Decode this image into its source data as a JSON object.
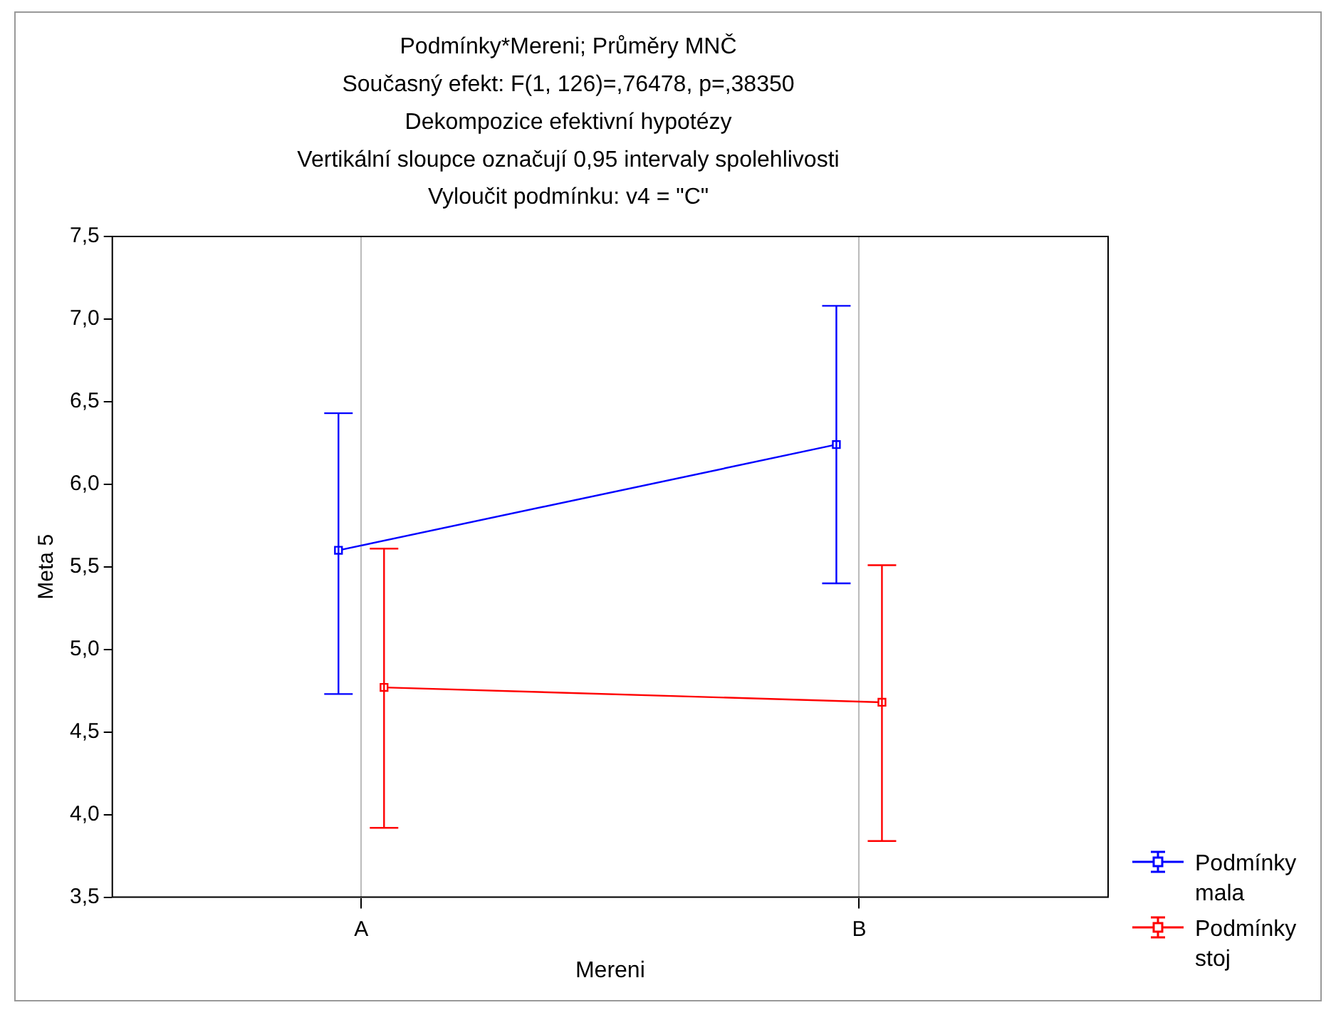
{
  "chart_data": {
    "type": "line",
    "title": "Podmínky*Mereni; Průměry MNČ",
    "subtitle": "Současný efekt: F(1, 126)=,76478, p=,38350",
    "annotations": [
      "Dekompozice efektivní hypotézy",
      "Vertikální sloupce označují 0,95 intervaly spolehlivosti",
      "Vyloučit podmínku: v4 = \"C\""
    ],
    "xlabel": "Mereni",
    "ylabel": "Meta 5",
    "categories": [
      "A",
      "B"
    ],
    "series": [
      {
        "name": "Podmínky mala",
        "color": "#0000ff",
        "values": [
          5.6,
          6.24
        ],
        "errors": [
          [
            4.73,
            6.43
          ],
          [
            5.4,
            7.08
          ]
        ]
      },
      {
        "name": "Podmínky stoj",
        "color": "#ff0000",
        "values": [
          4.77,
          4.68
        ],
        "errors": [
          [
            3.92,
            5.61
          ],
          [
            3.84,
            5.51
          ]
        ]
      }
    ],
    "ylim": [
      3.5,
      7.5
    ],
    "yticks": [
      {
        "value": 3.5,
        "label": "3,5"
      },
      {
        "value": 4,
        "label": "4,0"
      },
      {
        "value": 4.5,
        "label": "4,5"
      },
      {
        "value": 5,
        "label": "5,0"
      },
      {
        "value": 5.5,
        "label": "5,5"
      },
      {
        "value": 6,
        "label": "6,0"
      },
      {
        "value": 6.5,
        "label": "6,5"
      },
      {
        "value": 7,
        "label": "7,0"
      },
      {
        "value": 7.5,
        "label": "7,5"
      }
    ],
    "grid": "x",
    "legend": "bottom right",
    "marker": "square",
    "line_style": "solid"
  }
}
